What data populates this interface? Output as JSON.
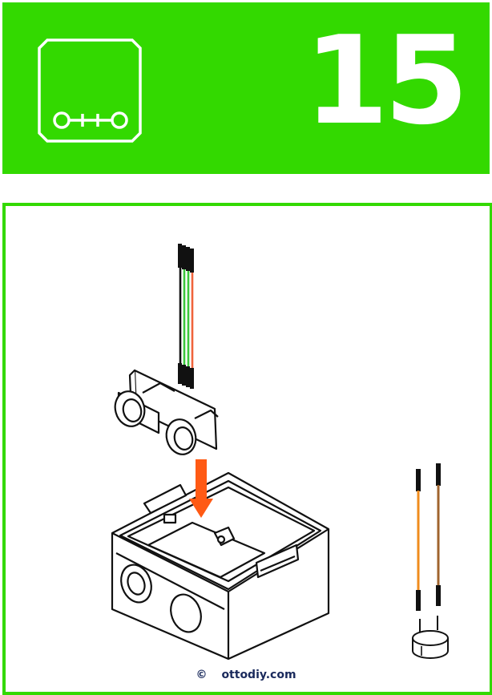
{
  "colors": {
    "brand": "#33d900",
    "arrow": "#ff5a14",
    "wire_green": "#3cc83c",
    "wire_red": "#f0643c",
    "wire_orange": "#f08c1e",
    "wire_brown": "#a0642d"
  },
  "header": {
    "logo_text": "o++o",
    "step_number": "15"
  },
  "footer": {
    "copyright_symbol": "©",
    "site": "ottodiy.com"
  },
  "icons": [
    "otto-logo-icon",
    "down-arrow-icon"
  ]
}
